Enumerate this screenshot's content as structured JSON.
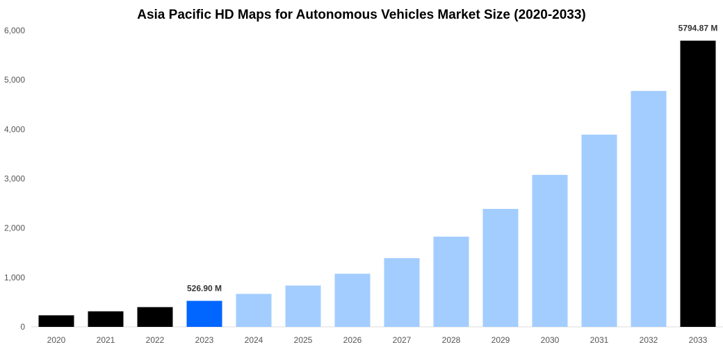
{
  "chart_data": {
    "type": "bar",
    "title": "Asia Pacific HD Maps for Autonomous Vehicles Market Size (2020-2033)",
    "xlabel": "",
    "ylabel": "",
    "ylim": [
      0,
      6000
    ],
    "yticks": [
      0,
      1000,
      2000,
      3000,
      4000,
      5000,
      6000
    ],
    "ytick_labels": [
      "0",
      "1,000",
      "2,000",
      "3,000",
      "4,000",
      "5,000",
      "6,000"
    ],
    "grid": false,
    "categories": [
      "2020",
      "2021",
      "2022",
      "2023",
      "2024",
      "2025",
      "2026",
      "2027",
      "2028",
      "2029",
      "2030",
      "2031",
      "2032",
      "2033"
    ],
    "values": [
      234,
      315,
      400,
      526.9,
      668,
      837,
      1076,
      1391,
      1827,
      2389,
      3077,
      3892,
      4777,
      5794.87
    ],
    "colors": [
      "#000000",
      "#000000",
      "#000000",
      "#0066ff",
      "#a3cdff",
      "#a3cdff",
      "#a3cdff",
      "#a3cdff",
      "#a3cdff",
      "#a3cdff",
      "#a3cdff",
      "#a3cdff",
      "#a3cdff",
      "#000000"
    ],
    "data_labels": {
      "3": "526.90 M",
      "13": "5794.87 M"
    }
  }
}
